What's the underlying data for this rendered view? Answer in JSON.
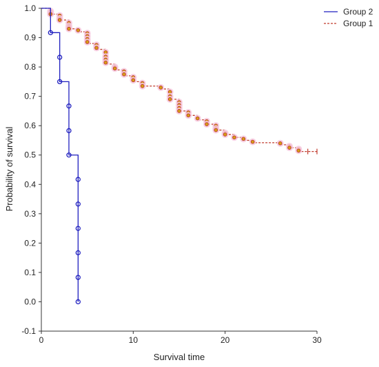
{
  "chart_data": {
    "type": "line",
    "title": "",
    "xlabel": "Survival time",
    "ylabel": "Probability of survival",
    "xlim": [
      0,
      30
    ],
    "ylim": [
      -0.1,
      1.0
    ],
    "xticks": [
      "0",
      "10",
      "20",
      "30"
    ],
    "yticks": [
      "-0.1",
      "0.0",
      "0.1",
      "0.2",
      "0.3",
      "0.4",
      "0.5",
      "0.6",
      "0.7",
      "0.8",
      "0.9",
      "1.0"
    ],
    "grid": false,
    "legend_position": "top-right",
    "series": [
      {
        "name": "Group 2",
        "style": "step-solid",
        "color": "#1f1fbf",
        "step_points": [
          [
            0,
            1.0
          ],
          [
            1,
            1.0
          ],
          [
            1,
            0.917
          ],
          [
            2,
            0.917
          ],
          [
            2,
            0.75
          ],
          [
            3,
            0.75
          ],
          [
            3,
            0.5
          ],
          [
            4,
            0.5
          ],
          [
            4,
            0.0
          ]
        ],
        "marker_points": [
          [
            1,
            0.917
          ],
          [
            2,
            0.833
          ],
          [
            2,
            0.75
          ],
          [
            3,
            0.667
          ],
          [
            3,
            0.583
          ],
          [
            3,
            0.5
          ],
          [
            4,
            0.417
          ],
          [
            4,
            0.333
          ],
          [
            4,
            0.25
          ],
          [
            4,
            0.167
          ],
          [
            4,
            0.083
          ],
          [
            4,
            0.0
          ]
        ]
      },
      {
        "name": "Group 1",
        "style": "step-dashed",
        "color": "#c0392b",
        "step_points": [
          [
            0,
            1.0
          ],
          [
            1,
            1.0
          ],
          [
            1,
            0.98
          ],
          [
            2,
            0.98
          ],
          [
            2,
            0.96
          ],
          [
            3,
            0.96
          ],
          [
            3,
            0.93
          ],
          [
            4,
            0.93
          ],
          [
            4,
            0.92
          ],
          [
            5,
            0.92
          ],
          [
            5,
            0.88
          ],
          [
            6,
            0.88
          ],
          [
            6,
            0.86
          ],
          [
            7,
            0.86
          ],
          [
            7,
            0.81
          ],
          [
            8,
            0.81
          ],
          [
            8,
            0.79
          ],
          [
            9,
            0.79
          ],
          [
            9,
            0.77
          ],
          [
            10,
            0.77
          ],
          [
            10,
            0.75
          ],
          [
            11,
            0.75
          ],
          [
            11,
            0.735
          ],
          [
            13,
            0.735
          ],
          [
            13,
            0.725
          ],
          [
            14,
            0.725
          ],
          [
            14,
            0.69
          ],
          [
            15,
            0.69
          ],
          [
            15,
            0.65
          ],
          [
            16,
            0.65
          ],
          [
            16,
            0.635
          ],
          [
            17,
            0.635
          ],
          [
            17,
            0.62
          ],
          [
            18,
            0.62
          ],
          [
            18,
            0.605
          ],
          [
            19,
            0.605
          ],
          [
            19,
            0.585
          ],
          [
            20,
            0.585
          ],
          [
            20,
            0.57
          ],
          [
            21,
            0.57
          ],
          [
            21,
            0.56
          ],
          [
            22,
            0.56
          ],
          [
            22,
            0.55
          ],
          [
            23,
            0.55
          ],
          [
            23,
            0.542
          ],
          [
            26,
            0.542
          ],
          [
            26,
            0.535
          ],
          [
            27,
            0.535
          ],
          [
            27,
            0.525
          ],
          [
            28,
            0.525
          ],
          [
            28,
            0.512
          ],
          [
            30,
            0.512
          ]
        ],
        "marker_points": [
          [
            1,
            0.99
          ],
          [
            1,
            0.985
          ],
          [
            1,
            0.98
          ],
          [
            2,
            0.975
          ],
          [
            2,
            0.965
          ],
          [
            2,
            0.96
          ],
          [
            3,
            0.95
          ],
          [
            3,
            0.94
          ],
          [
            3,
            0.935
          ],
          [
            3,
            0.93
          ],
          [
            4,
            0.925
          ],
          [
            5,
            0.915
          ],
          [
            5,
            0.905
          ],
          [
            5,
            0.895
          ],
          [
            5,
            0.885
          ],
          [
            6,
            0.875
          ],
          [
            6,
            0.865
          ],
          [
            7,
            0.85
          ],
          [
            7,
            0.835
          ],
          [
            7,
            0.825
          ],
          [
            7,
            0.815
          ],
          [
            8,
            0.8
          ],
          [
            8,
            0.795
          ],
          [
            9,
            0.785
          ],
          [
            9,
            0.775
          ],
          [
            10,
            0.765
          ],
          [
            10,
            0.755
          ],
          [
            11,
            0.745
          ],
          [
            11,
            0.735
          ],
          [
            13,
            0.73
          ],
          [
            14,
            0.715
          ],
          [
            14,
            0.7
          ],
          [
            14,
            0.69
          ],
          [
            15,
            0.68
          ],
          [
            15,
            0.67
          ],
          [
            15,
            0.66
          ],
          [
            15,
            0.65
          ],
          [
            16,
            0.645
          ],
          [
            16,
            0.635
          ],
          [
            17,
            0.625
          ],
          [
            18,
            0.615
          ],
          [
            18,
            0.605
          ],
          [
            19,
            0.6
          ],
          [
            19,
            0.59
          ],
          [
            19,
            0.585
          ],
          [
            20,
            0.575
          ],
          [
            20,
            0.57
          ],
          [
            21,
            0.56
          ],
          [
            22,
            0.555
          ],
          [
            23,
            0.545
          ],
          [
            26,
            0.54
          ],
          [
            27,
            0.53
          ],
          [
            27,
            0.525
          ],
          [
            28,
            0.52
          ],
          [
            28,
            0.515
          ]
        ],
        "censor_marks": [
          [
            29,
            0.512
          ],
          [
            30,
            0.512
          ]
        ]
      }
    ]
  }
}
